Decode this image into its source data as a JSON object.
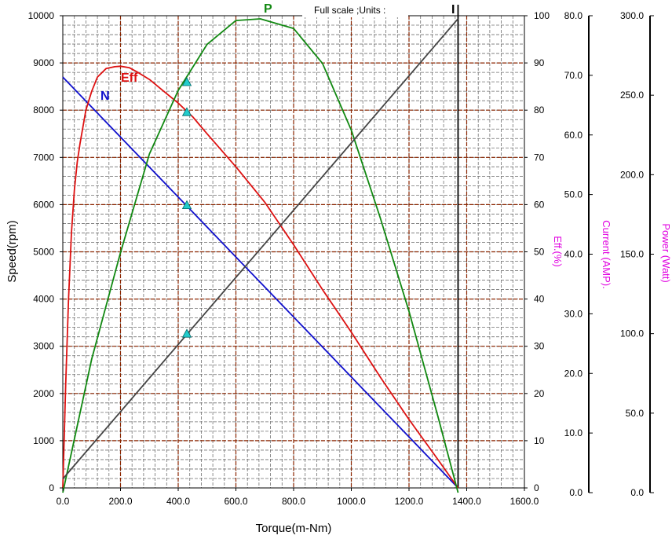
{
  "chart_data": {
    "type": "line",
    "note_text": "Full scale ;Units :",
    "xlabel": "Torque(m-Nm)",
    "ylabel": "Speed(rpm)",
    "eff_axis_label": "Eff.(%)",
    "current_axis_label": "Current (AMP).",
    "power_axis_label": "Power (Watt)",
    "x_range": [
      0,
      1600
    ],
    "x_ticks": [
      "0.0",
      "200.0",
      "400.0",
      "600.0",
      "800.0",
      "1000.0",
      "1200.0",
      "1400.0",
      "1600.0"
    ],
    "speed_range": [
      0,
      10000
    ],
    "speed_ticks": [
      "0",
      "1000",
      "2000",
      "3000",
      "4000",
      "5000",
      "6000",
      "7000",
      "8000",
      "9000",
      "10000"
    ],
    "eff_range": [
      0,
      100
    ],
    "eff_ticks": [
      "0",
      "10",
      "20",
      "30",
      "40",
      "50",
      "60",
      "70",
      "80",
      "90",
      "100"
    ],
    "current_range": [
      0,
      80
    ],
    "current_ticks": [
      "0.0",
      "10.0",
      "20.0",
      "30.0",
      "40.0",
      "50.0",
      "60.0",
      "70.0",
      "80.0"
    ],
    "power_range": [
      0,
      300
    ],
    "power_ticks": [
      "0.0",
      "50.0",
      "100.0",
      "150.0",
      "200.0",
      "250.0",
      "300.0"
    ],
    "grid": true,
    "series": [
      {
        "name": "N",
        "axis": "speed",
        "color": "#1010cc",
        "x": [
          0,
          1370
        ],
        "y": [
          8700,
          0
        ]
      },
      {
        "name": "Eff",
        "axis": "eff",
        "color": "#dd1111",
        "x": [
          0,
          10,
          20,
          30,
          40,
          50,
          60,
          80,
          100,
          120,
          150,
          180,
          200,
          230,
          260,
          300,
          350,
          400,
          450,
          500,
          600,
          700,
          800,
          900,
          1000,
          1100,
          1200,
          1300,
          1370
        ],
        "y": [
          0,
          22,
          40,
          54,
          63,
          69,
          73,
          80,
          84,
          87,
          88.8,
          89.2,
          89.3,
          89,
          88,
          86.5,
          84,
          81.5,
          78.6,
          75,
          68,
          60.5,
          51.5,
          42,
          33,
          23.5,
          14.5,
          6,
          0
        ]
      },
      {
        "name": "P",
        "axis": "power",
        "color": "#118811",
        "x": [
          0,
          100,
          200,
          300,
          400,
          500,
          600,
          685,
          800,
          900,
          1000,
          1100,
          1200,
          1300,
          1370
        ],
        "y": [
          0,
          84,
          151,
          213,
          253,
          282,
          297,
          298,
          292,
          270,
          228,
          173,
          114,
          48,
          0
        ]
      },
      {
        "name": "I",
        "axis": "current",
        "color": "#444444",
        "x": [
          0,
          1370
        ],
        "y": [
          2.3,
          79.5
        ]
      }
    ],
    "rated_point_torque": 430,
    "rated_markers": [
      {
        "series": "P",
        "axis": "power",
        "value": 258
      },
      {
        "series": "Eff",
        "axis": "eff",
        "value": 79.5
      },
      {
        "series": "N",
        "axis": "speed",
        "value": 5980
      },
      {
        "series": "I",
        "axis": "current",
        "value": 26.6
      }
    ],
    "max_torque_line": 1370,
    "marker_color": "#22cccc"
  }
}
